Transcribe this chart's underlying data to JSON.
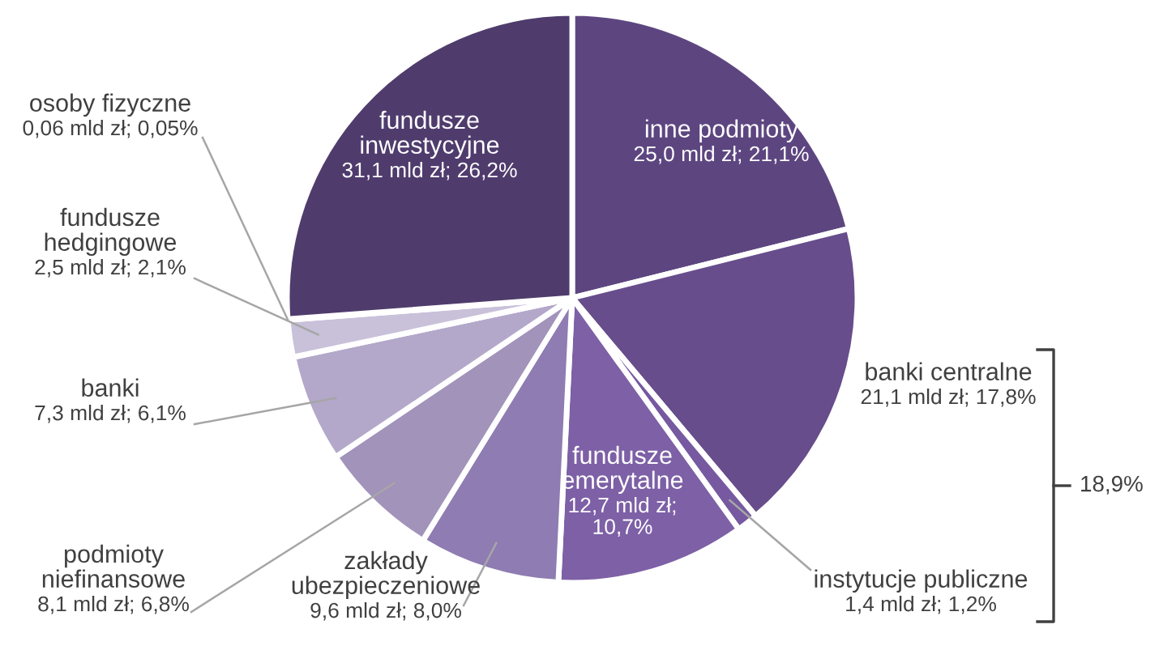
{
  "chart_data": {
    "type": "pie",
    "categories": [
      "inne podmioty",
      "banki centralne",
      "instytucje publiczne",
      "fundusze\nemerytalne",
      "zakłady\nubezpieczeniowe",
      "podmioty\nniefinansowe",
      "banki",
      "fundusze\nhedgingowe",
      "osoby fizyczne",
      "fundusze\ninwestycyjne"
    ],
    "values": [
      21.1,
      17.8,
      1.2,
      10.7,
      8.0,
      6.8,
      6.1,
      2.1,
      0.05,
      26.2
    ],
    "value_labels": [
      "25,0 mld zł; 21,1%",
      "21,1 mld zł; 17,8%",
      "1,4 mld zł; 1,2%",
      "12,7 mld zł;\n10,7%",
      "9,6 mld zł; 8,0%",
      "8,1 mld zł; 6,8%",
      "7,3 mld zł; 6,1%",
      "2,5 mld zł; 2,1%",
      "0,06 mld zł; 0,05%",
      "31,1 mld zł; 26,2%"
    ],
    "colors": [
      "#5d4680",
      "#674d8c",
      "#7659a0",
      "#7d60a6",
      "#8e7cb2",
      "#a293bb",
      "#b3a8ca",
      "#c9c0da",
      "#ddd7e8",
      "#4f3c6d"
    ],
    "annotations": [
      "18,9%"
    ],
    "legend": false
  }
}
